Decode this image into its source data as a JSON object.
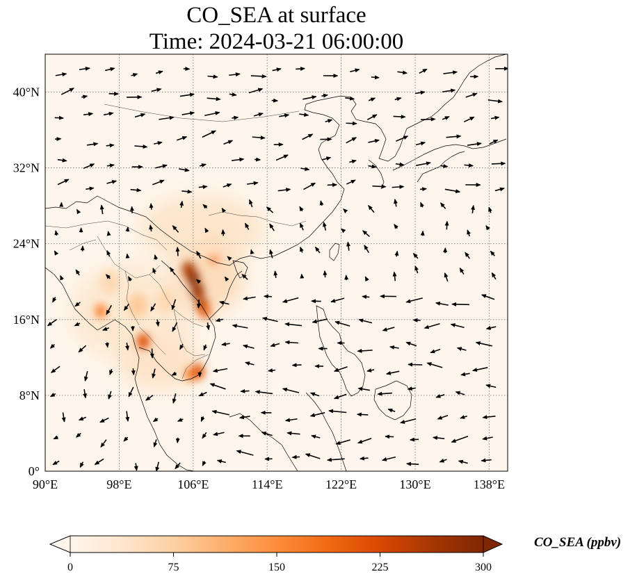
{
  "title": {
    "line1": "CO_SEA at surface",
    "line2": "Time: 2024-03-21 06:00:00"
  },
  "map": {
    "variable": "CO_SEA",
    "level": "surface",
    "extent": {
      "lon": [
        90,
        140
      ],
      "lat": [
        0,
        44
      ]
    },
    "gridlines": {
      "style": "dotted",
      "color": "#777777"
    },
    "lon_ticks": [
      {
        "value": 90,
        "label": "90°E"
      },
      {
        "value": 98,
        "label": "98°E"
      },
      {
        "value": 106,
        "label": "106°E"
      },
      {
        "value": 114,
        "label": "114°E"
      },
      {
        "value": 122,
        "label": "122°E"
      },
      {
        "value": 130,
        "label": "130°E"
      },
      {
        "value": 138,
        "label": "138°E"
      }
    ],
    "lat_ticks": [
      {
        "value": 0,
        "label": "0°"
      },
      {
        "value": 8,
        "label": "8°N"
      },
      {
        "value": 16,
        "label": "16°N"
      },
      {
        "value": 24,
        "label": "24°N"
      },
      {
        "value": 32,
        "label": "32°N"
      },
      {
        "value": 40,
        "label": "40°N"
      }
    ],
    "hotspots": [
      {
        "lon": 106.0,
        "lat": 20.4,
        "value": 300
      },
      {
        "lon": 106.5,
        "lat": 19.0,
        "value": 280
      },
      {
        "lon": 107.0,
        "lat": 17.5,
        "value": 250
      },
      {
        "lon": 105.5,
        "lat": 21.3,
        "value": 260
      },
      {
        "lon": 107.3,
        "lat": 16.8,
        "value": 200
      },
      {
        "lon": 108.2,
        "lat": 22.6,
        "value": 150
      },
      {
        "lon": 106.5,
        "lat": 10.5,
        "value": 220
      },
      {
        "lon": 105.7,
        "lat": 10.2,
        "value": 170
      },
      {
        "lon": 100.6,
        "lat": 13.7,
        "value": 220
      },
      {
        "lon": 96.0,
        "lat": 16.9,
        "value": 170
      },
      {
        "lon": 100.0,
        "lat": 17.5,
        "value": 80
      },
      {
        "lon": 103.0,
        "lat": 18.0,
        "value": 60
      },
      {
        "lon": 97.0,
        "lat": 20.0,
        "value": 60
      },
      {
        "lon": 108.0,
        "lat": 24.0,
        "value": 50
      }
    ],
    "wind_vectors_shown": true
  },
  "colorbar": {
    "label": "CO_SEA (ppbv)",
    "min": 0,
    "max": 300,
    "extend": "both",
    "ticks": [
      0,
      75,
      150,
      225,
      300
    ],
    "colors": [
      "#fff5eb",
      "#fee6ce",
      "#fdd0a2",
      "#fdae6b",
      "#fd8d3c",
      "#f16913",
      "#d94801",
      "#a63603",
      "#7f2704"
    ]
  }
}
